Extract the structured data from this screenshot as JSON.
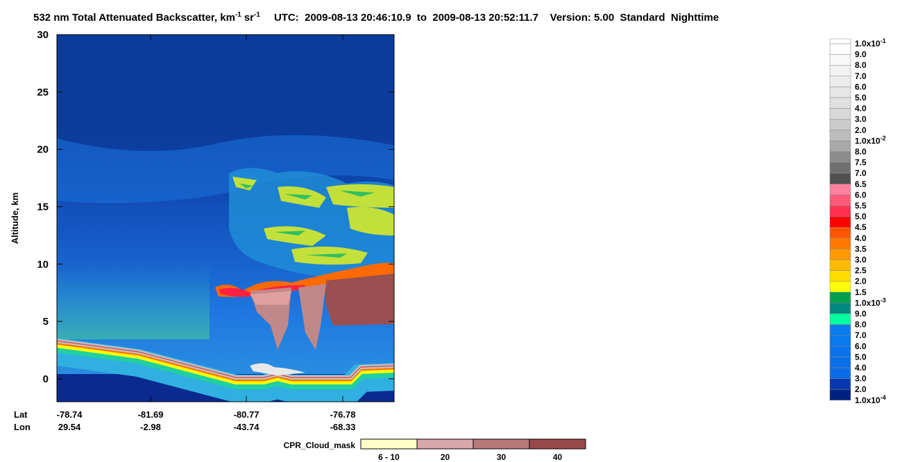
{
  "chart_data": {
    "type": "curtain",
    "title": {
      "text": "532 nm Total Attenuated Backscatter, km",
      "exp1": "-1",
      "unit2": "sr",
      "exp2": "-1",
      "info": "UTC:  2009-08-13 20:46:10.9  to  2009-08-13 20:52:11.7    Version: 5.00  Standard  Nighttime"
    },
    "y_label": "Altitude, km",
    "ylim": [
      -2,
      30
    ],
    "yticks": [
      0,
      5,
      10,
      15,
      20,
      25,
      30
    ],
    "x_rows": [
      {
        "name": "Lat",
        "values": [
          -78.74,
          -81.69,
          -80.77,
          -76.78
        ]
      },
      {
        "name": "Lon",
        "values": [
          29.54,
          -2.98,
          -43.74,
          -68.33
        ]
      }
    ],
    "colorbar": {
      "labels": [
        {
          "text": "1.0x10",
          "exp": "-1"
        },
        "9.0",
        "8.0",
        "7.0",
        "6.0",
        "5.0",
        "4.0",
        "3.0",
        "2.0",
        {
          "text": "1.0x10",
          "exp": "-2"
        },
        "8.0",
        "7.5",
        "7.0",
        "6.5",
        "6.0",
        "5.5",
        "5.0",
        "4.5",
        "4.0",
        "3.5",
        "3.0",
        "2.5",
        "2.0",
        "1.5",
        {
          "text": "1.0x10",
          "exp": "-3"
        },
        "9.0",
        "8.0",
        "7.0",
        "6.0",
        "5.0",
        "4.0",
        "3.0",
        "2.0",
        {
          "text": "1.0x10",
          "exp": "-4"
        }
      ],
      "colors": [
        "#ffffff",
        "#f8f8f8",
        "#f2f2f2",
        "#ececec",
        "#e6e6e6",
        "#e0e0e0",
        "#d8d8d8",
        "#cccccc",
        "#bdbdbd",
        "#a8a8a8",
        "#8c8c8c",
        "#707070",
        "#505050",
        "#ff7fa0",
        "#ff5a78",
        "#ff3050",
        "#ff0000",
        "#ff5500",
        "#ff7800",
        "#ff9900",
        "#ffbb00",
        "#ffdd00",
        "#ffff00",
        "#00a050",
        "#008880",
        "#00ffa0",
        "#0a7cf0",
        "#0a78ee",
        "#0a74ec",
        "#0a70ea",
        "#0a6ce8",
        "#0838b0",
        "#002080"
      ]
    },
    "cpr_legend": {
      "title": "CPR_Cloud_mask",
      "labels": [
        "6 - 10",
        "20",
        "30",
        "40"
      ],
      "colors": [
        "#ffffc8",
        "#d8a8a8",
        "#b87878",
        "#984848"
      ]
    }
  }
}
